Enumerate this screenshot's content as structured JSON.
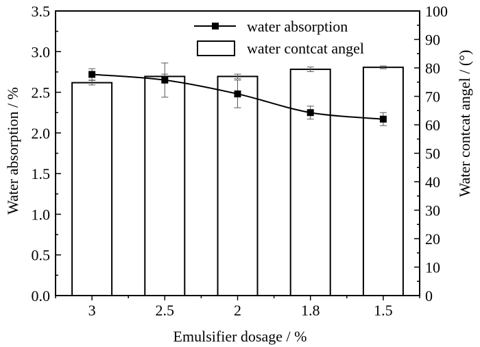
{
  "chart_data": {
    "type": "bar",
    "categories": [
      "3",
      "2.5",
      "2",
      "1.8",
      "1.5"
    ],
    "xlabel": "Emulsifier dosage / %",
    "ylabel": "Water absorption / %",
    "y2label": "Water contcat angel / (°)",
    "ylim": [
      0,
      3.5
    ],
    "y2lim": [
      0,
      100
    ],
    "yticks": [
      "0.0",
      "0.5",
      "1.0",
      "1.5",
      "2.0",
      "2.5",
      "3.0",
      "3.5"
    ],
    "y2ticks": [
      "0",
      "10",
      "20",
      "30",
      "40",
      "50",
      "60",
      "70",
      "80",
      "90",
      "100"
    ],
    "legend_position": "top-right",
    "grid": false,
    "series": [
      {
        "name": "water contcat angel",
        "type": "bar",
        "axis": "right",
        "values": [
          74.8,
          77.0,
          77.0,
          79.5,
          80.2
        ],
        "errors": [
          0.8,
          0.8,
          0.8,
          0.8,
          0.5
        ]
      },
      {
        "name": "water absorption",
        "type": "line",
        "axis": "left",
        "marker": "square",
        "linestyle": "solid",
        "values": [
          2.72,
          2.65,
          2.48,
          2.25,
          2.17
        ],
        "errors": [
          0.07,
          0.21,
          0.17,
          0.08,
          0.08
        ]
      }
    ]
  }
}
